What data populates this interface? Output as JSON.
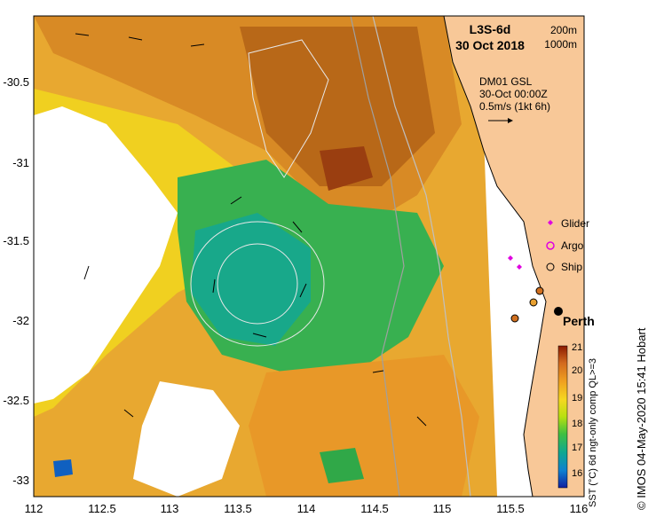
{
  "header": {
    "product": "L3S-6d",
    "date": "30 Oct 2018"
  },
  "isobath_legend": [
    "200m",
    "1000m"
  ],
  "current_info": {
    "line1": "DM01 GSL",
    "line2": "30-Oct 00:00Z",
    "line3": "0.5m/s (1kt 6h)"
  },
  "platform_legend": [
    {
      "label": "Glider",
      "symbol": "diamond",
      "color": "#e000e0"
    },
    {
      "label": "Argo",
      "symbol": "ring",
      "color": "#e000e0"
    },
    {
      "label": "Ship",
      "symbol": "circle",
      "color": "#000000"
    }
  ],
  "place_label": "Perth",
  "axes": {
    "lon_ticks": [
      "112",
      "112.5",
      "113",
      "113.5",
      "114",
      "114.5",
      "115",
      "115.5",
      "116"
    ],
    "lat_ticks": [
      "-30.5",
      "-31",
      "-31.5",
      "-32",
      "-32.5",
      "-33"
    ]
  },
  "colorbar": {
    "ticks": [
      "21",
      "20",
      "19",
      "18",
      "17",
      "16"
    ],
    "title": "SST (°C) 6d ngt-only comp QL>=3",
    "colors": [
      "#8b1a00",
      "#d2691e",
      "#f0a020",
      "#f5d820",
      "#b8e010",
      "#40c040",
      "#10a890",
      "#1080d0",
      "#1020a0"
    ]
  },
  "credit": "© IMOS 04-May-2020 15:41 Hobart",
  "colors": {
    "land": "#f8c898",
    "sst_warm": "#c07020",
    "sst_mid": "#e8b020",
    "sst_cool": "#20b060"
  }
}
